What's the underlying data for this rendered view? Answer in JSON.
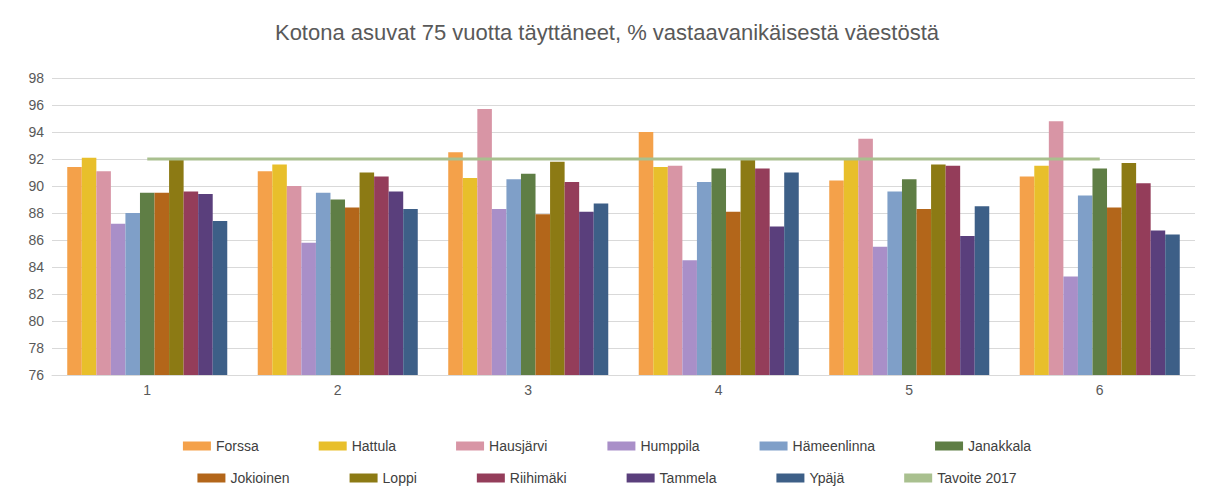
{
  "chart_data": {
    "type": "bar",
    "title": "Kotona asuvat 75 vuotta täyttäneet, % vastaavanikäisestä väestöstä",
    "categories": [
      "1",
      "2",
      "3",
      "4",
      "5",
      "6"
    ],
    "series": [
      {
        "name": "Forssa",
        "color": "#f4a14a",
        "values": [
          91.4,
          91.1,
          92.5,
          94.0,
          90.4,
          90.7
        ]
      },
      {
        "name": "Hattula",
        "color": "#e8bf2b",
        "values": [
          92.1,
          91.6,
          90.6,
          91.4,
          92.0,
          91.5
        ]
      },
      {
        "name": "Hausjärvi",
        "color": "#d895a5",
        "values": [
          91.1,
          90.0,
          95.7,
          91.5,
          93.5,
          94.8
        ]
      },
      {
        "name": "Humppila",
        "color": "#a98fc8",
        "values": [
          87.2,
          85.8,
          88.3,
          84.5,
          85.5,
          83.3
        ]
      },
      {
        "name": "Hämeenlinna",
        "color": "#7f9fc8",
        "values": [
          88.0,
          89.5,
          90.5,
          90.3,
          89.6,
          89.3
        ]
      },
      {
        "name": "Janakkala",
        "color": "#5f7e45",
        "values": [
          89.5,
          89.0,
          90.9,
          91.3,
          90.5,
          91.3
        ]
      },
      {
        "name": "Jokioinen",
        "color": "#b3661a",
        "values": [
          89.5,
          88.4,
          87.9,
          88.1,
          88.3,
          88.4
        ]
      },
      {
        "name": "Loppi",
        "color": "#8c7a14",
        "values": [
          92.0,
          91.0,
          91.8,
          92.0,
          91.6,
          91.7
        ]
      },
      {
        "name": "Riihimäki",
        "color": "#943d5a",
        "values": [
          89.6,
          90.7,
          90.3,
          91.3,
          91.5,
          90.2
        ]
      },
      {
        "name": "Tammela",
        "color": "#5a3f7c",
        "values": [
          89.4,
          89.6,
          88.1,
          87.0,
          86.3,
          86.7
        ]
      },
      {
        "name": "Ypäjä",
        "color": "#3d5f87",
        "values": [
          87.4,
          88.3,
          88.7,
          91.0,
          88.5,
          86.4
        ]
      },
      {
        "name": "Tavoite 2017",
        "color": "#a9c08f",
        "type": "line",
        "values": [
          92,
          92,
          92,
          92,
          92,
          92
        ]
      }
    ],
    "ylim": [
      76,
      98
    ],
    "yticks": [
      76,
      78,
      80,
      82,
      84,
      86,
      88,
      90,
      92,
      94,
      96,
      98
    ],
    "grid": true,
    "legend": "bottom"
  }
}
